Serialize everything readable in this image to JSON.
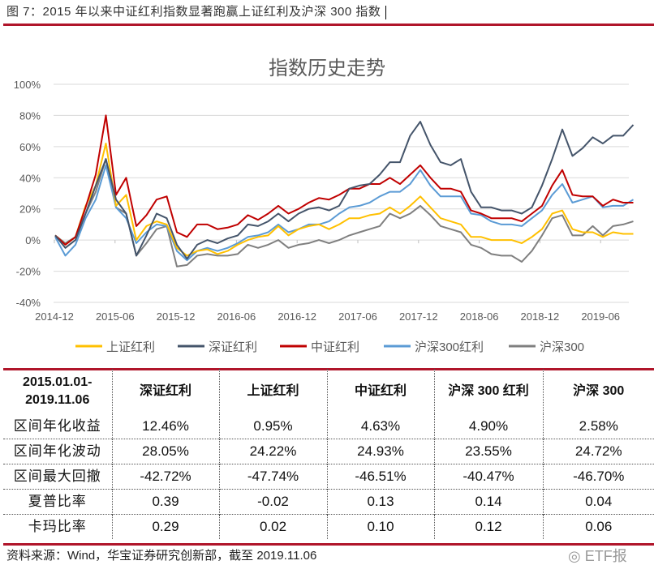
{
  "caption": "图 7：2015 年以来中证红利指数显著跑赢上证红利及沪深 300 指数",
  "chart_data": {
    "type": "line",
    "title": "指数历史走势",
    "xlabel": "",
    "ylabel": "",
    "ylim": [
      -40,
      100
    ],
    "yticks": [
      "100%",
      "80%",
      "60%",
      "40%",
      "20%",
      "0%",
      "-20%",
      "-40%"
    ],
    "ytick_values": [
      100,
      80,
      60,
      40,
      20,
      0,
      -20,
      -40
    ],
    "xticks": [
      "2014-12",
      "2015-06",
      "2015-12",
      "2016-06",
      "2016-12",
      "2017-06",
      "2017-12",
      "2018-06",
      "2018-12",
      "2019-06"
    ],
    "grid": true,
    "legend_position": "bottom",
    "x": [
      "2015-01",
      "2015-02",
      "2015-03",
      "2015-04",
      "2015-05",
      "2015-06",
      "2015-07",
      "2015-08",
      "2015-09",
      "2015-10",
      "2015-11",
      "2015-12",
      "2016-01",
      "2016-02",
      "2016-03",
      "2016-04",
      "2016-05",
      "2016-06",
      "2016-07",
      "2016-08",
      "2016-09",
      "2016-10",
      "2016-11",
      "2016-12",
      "2017-01",
      "2017-02",
      "2017-03",
      "2017-04",
      "2017-05",
      "2017-06",
      "2017-07",
      "2017-08",
      "2017-09",
      "2017-10",
      "2017-11",
      "2017-12",
      "2018-01",
      "2018-02",
      "2018-03",
      "2018-04",
      "2018-05",
      "2018-06",
      "2018-07",
      "2018-08",
      "2018-09",
      "2018-10",
      "2018-11",
      "2018-12",
      "2019-01",
      "2019-02",
      "2019-03",
      "2019-04",
      "2019-05",
      "2019-06",
      "2019-07",
      "2019-08",
      "2019-09",
      "2019-10"
    ],
    "series": [
      {
        "name": "上证红利",
        "color": "#ffc000",
        "values": [
          3,
          -3,
          2,
          22,
          35,
          62,
          22,
          29,
          0,
          9,
          12,
          10,
          -5,
          -10,
          -7,
          -6,
          -9,
          -7,
          -3,
          0,
          2,
          3,
          9,
          3,
          7,
          9,
          10,
          7,
          10,
          14,
          14,
          16,
          17,
          21,
          17,
          22,
          28,
          21,
          14,
          12,
          10,
          2,
          2,
          0,
          0,
          0,
          -2,
          2,
          7,
          17,
          19,
          7,
          5,
          5,
          2,
          5,
          4,
          4
        ]
      },
      {
        "name": "深证红利",
        "color": "#44546a",
        "values": [
          3,
          -5,
          0,
          17,
          35,
          52,
          26,
          17,
          -10,
          3,
          17,
          14,
          -3,
          -12,
          -3,
          0,
          -2,
          1,
          3,
          10,
          9,
          12,
          17,
          12,
          17,
          20,
          21,
          19,
          22,
          33,
          35,
          36,
          42,
          50,
          50,
          67,
          76,
          61,
          50,
          48,
          52,
          31,
          21,
          21,
          19,
          19,
          17,
          21,
          35,
          52,
          71,
          54,
          59,
          66,
          62,
          67,
          67,
          74
        ]
      },
      {
        "name": "中证红利",
        "color": "#c00000",
        "values": [
          3,
          -3,
          2,
          21,
          42,
          80,
          29,
          40,
          9,
          16,
          26,
          28,
          5,
          2,
          10,
          10,
          7,
          8,
          10,
          16,
          13,
          17,
          22,
          17,
          20,
          24,
          27,
          26,
          29,
          33,
          33,
          36,
          36,
          40,
          36,
          42,
          48,
          40,
          33,
          33,
          31,
          19,
          17,
          14,
          14,
          14,
          12,
          17,
          22,
          35,
          45,
          29,
          28,
          28,
          22,
          26,
          24,
          24
        ]
      },
      {
        "name": "沪深300红利",
        "color": "#5b9bd5",
        "values": [
          2,
          -10,
          -3,
          14,
          26,
          48,
          21,
          14,
          -2,
          5,
          10,
          9,
          -7,
          -13,
          -7,
          -5,
          -7,
          -5,
          -2,
          2,
          3,
          5,
          10,
          5,
          7,
          10,
          10,
          12,
          17,
          21,
          22,
          24,
          28,
          31,
          31,
          36,
          45,
          35,
          28,
          28,
          28,
          17,
          16,
          12,
          10,
          10,
          9,
          14,
          19,
          29,
          36,
          24,
          26,
          28,
          21,
          22,
          22,
          26
        ]
      },
      {
        "name": "沪深300",
        "color": "#7f7f7f",
        "values": [
          3,
          -2,
          2,
          17,
          31,
          52,
          21,
          17,
          -10,
          -2,
          7,
          9,
          -17,
          -16,
          -10,
          -9,
          -10,
          -10,
          -9,
          -3,
          -5,
          -3,
          0,
          -5,
          -3,
          -2,
          0,
          -2,
          0,
          3,
          5,
          7,
          9,
          17,
          14,
          17,
          22,
          16,
          9,
          7,
          5,
          -3,
          -5,
          -9,
          -10,
          -10,
          -14,
          -7,
          3,
          14,
          16,
          3,
          3,
          9,
          3,
          9,
          10,
          12
        ]
      }
    ]
  },
  "table": {
    "header_period": [
      "2015.01.01-",
      "2019.11.06"
    ],
    "columns": [
      "深证红利",
      "上证红利",
      "中证红利",
      "沪深 300 红利",
      "沪深 300"
    ],
    "rows": [
      {
        "label": "区间年化收益",
        "values": [
          "12.46%",
          "0.95%",
          "4.63%",
          "4.90%",
          "2.58%"
        ]
      },
      {
        "label": "区间年化波动",
        "values": [
          "28.05%",
          "24.22%",
          "24.93%",
          "23.55%",
          "24.72%"
        ]
      },
      {
        "label": "区间最大回撤",
        "values": [
          "-42.72%",
          "-47.74%",
          "-46.51%",
          "-40.47%",
          "-46.70%"
        ]
      },
      {
        "label": "夏普比率",
        "values": [
          "0.39",
          "-0.02",
          "0.13",
          "0.14",
          "0.04"
        ]
      },
      {
        "label": "卡玛比率",
        "values": [
          "0.29",
          "0.02",
          "0.10",
          "0.12",
          "0.06"
        ]
      }
    ]
  },
  "source": "资料来源：Wind，华宝证券研究创新部，截至 2019.11.06",
  "watermark": "ETF报",
  "colors": {
    "accent_rule": "#b0152a",
    "grid": "#d9d9d9"
  }
}
